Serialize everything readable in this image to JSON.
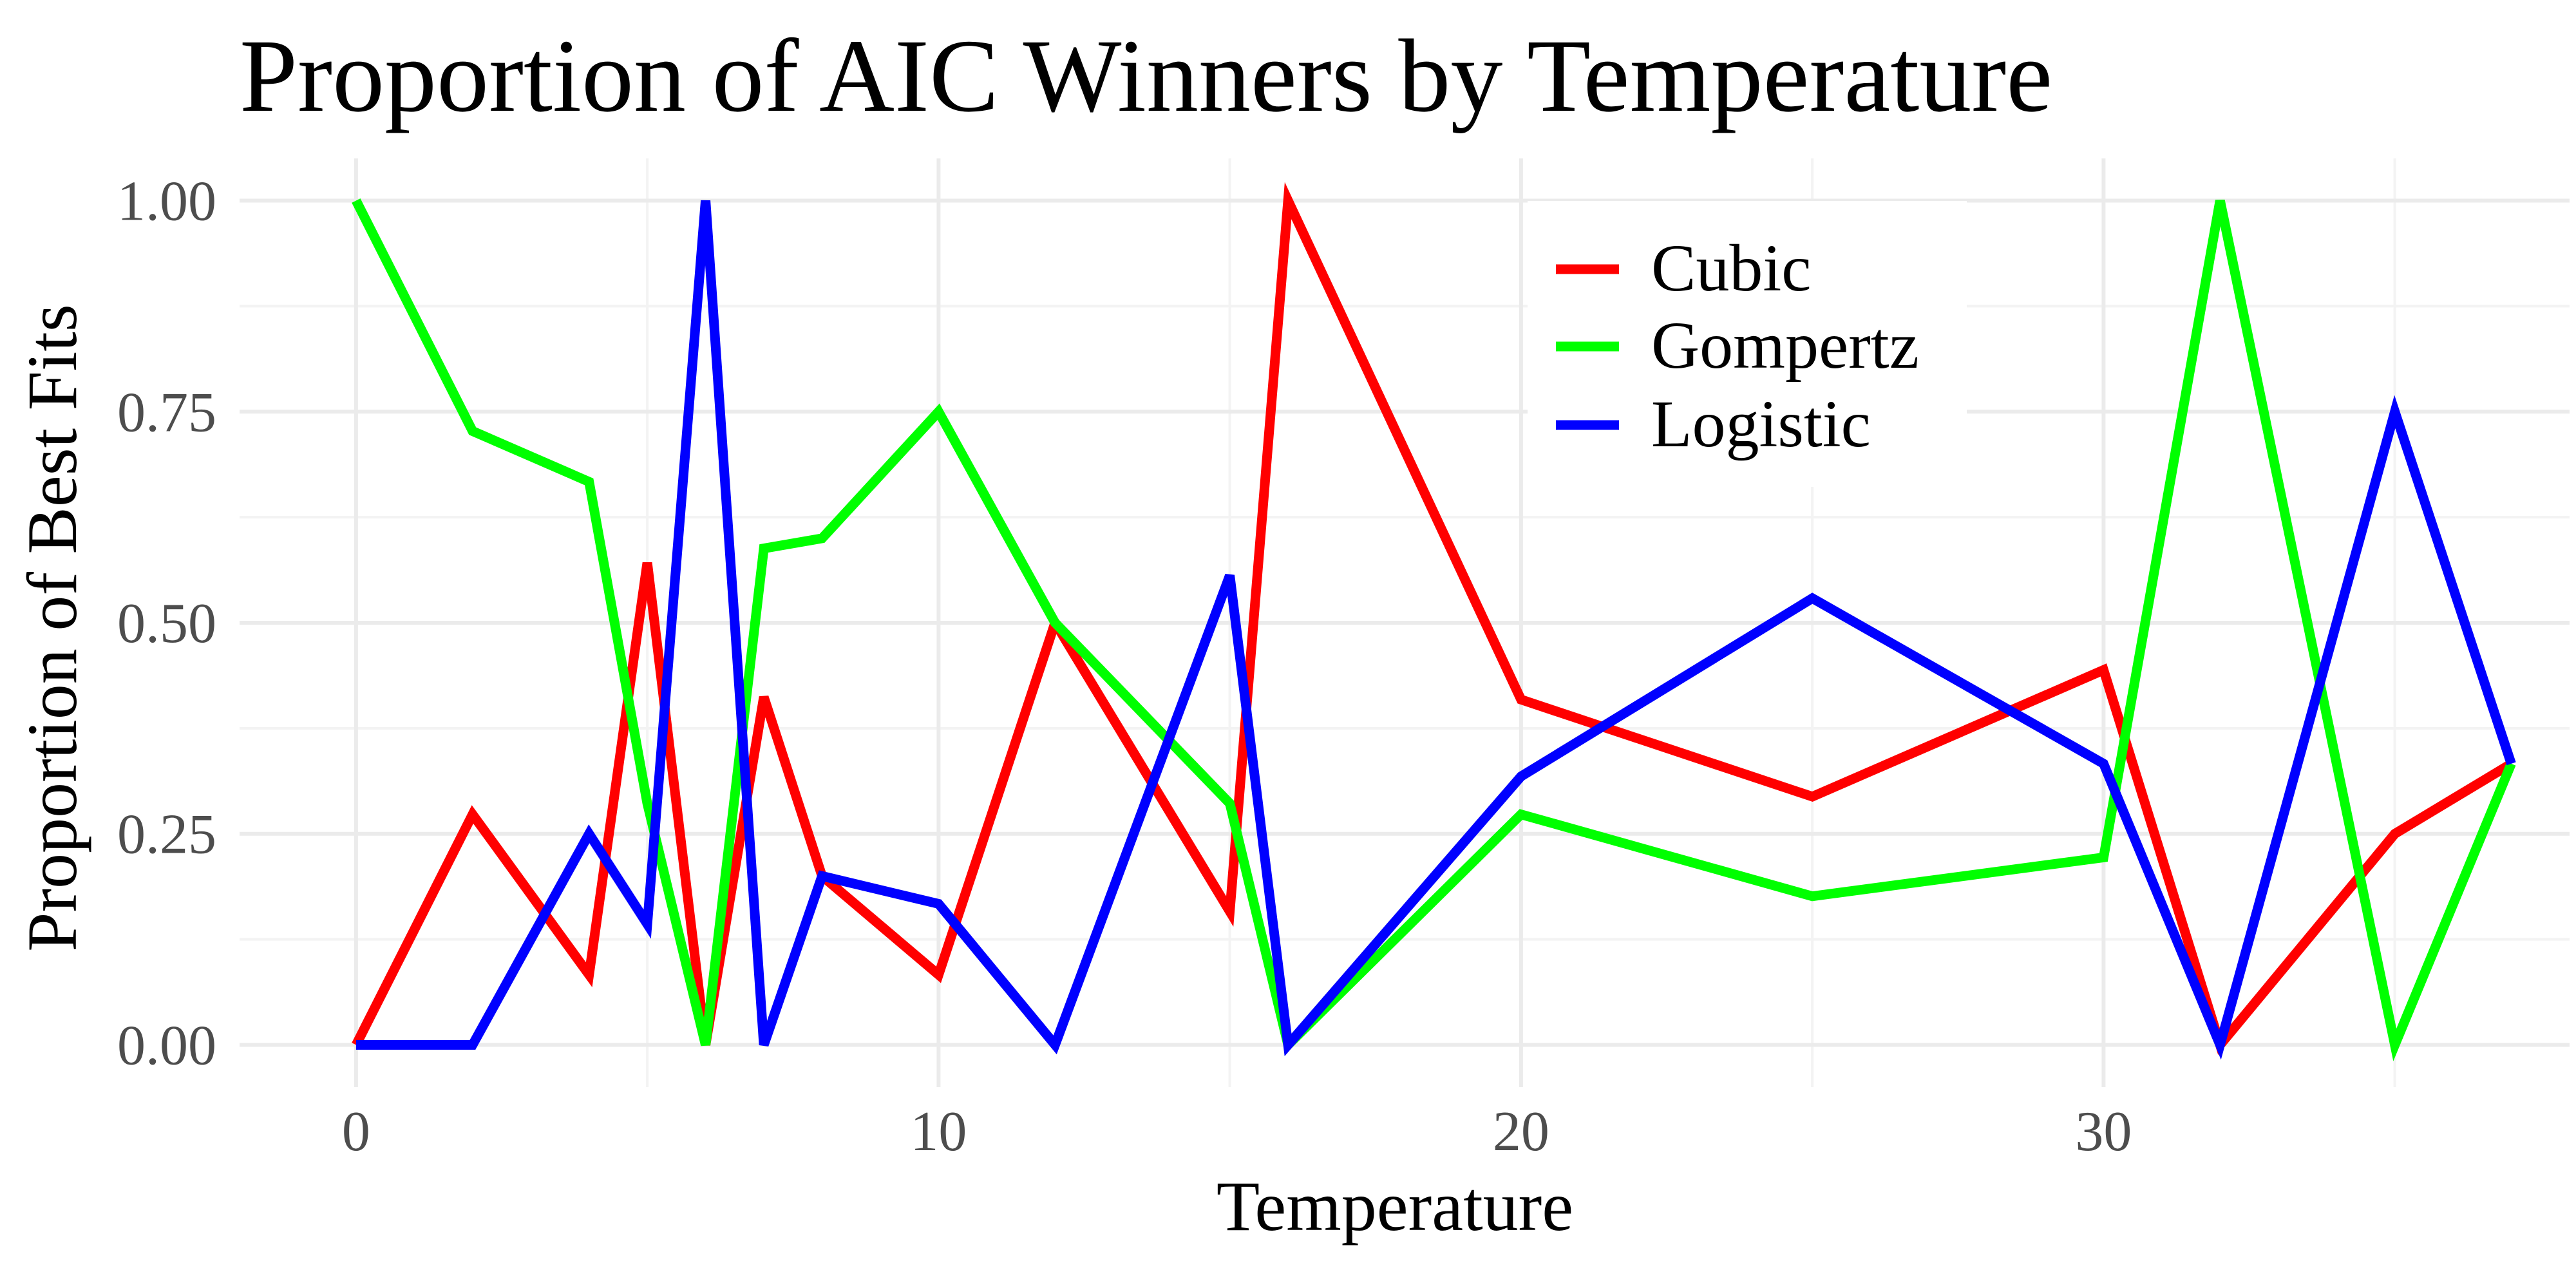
{
  "chart_data": {
    "type": "line",
    "title": "Proportion of AIC Winners by Temperature",
    "xlabel": "Temperature",
    "ylabel": "Proportion of Best Fits",
    "xlim": [
      -2,
      38
    ],
    "ylim": [
      -0.05,
      1.05
    ],
    "x_ticks": [
      0,
      10,
      20,
      30
    ],
    "x_tick_labels": [
      "0",
      "10",
      "20",
      "30"
    ],
    "x_minor_ticks": [
      5,
      15,
      25,
      35
    ],
    "y_ticks": [
      0,
      0.25,
      0.5,
      0.75,
      1
    ],
    "y_tick_labels": [
      "0.00",
      "0.25",
      "0.50",
      "0.75",
      "1.00"
    ],
    "y_minor_ticks": [
      0.125,
      0.375,
      0.625,
      0.875
    ],
    "grid": true,
    "legend_position": "top-right",
    "x": [
      0,
      2,
      4,
      5,
      6,
      7,
      8,
      10,
      12,
      15,
      16,
      20,
      25,
      30,
      32,
      35,
      37
    ],
    "series": [
      {
        "name": "Cubic",
        "color": "#ff0000",
        "values": [
          0,
          0.273,
          0.083,
          0.571,
          0,
          0.412,
          0.2,
          0.083,
          0.5,
          0.158,
          1,
          0.409,
          0.294,
          0.444,
          0,
          0.25,
          0.333
        ]
      },
      {
        "name": "Gompertz",
        "color": "#00ff00",
        "values": [
          1,
          0.727,
          0.667,
          0.286,
          0,
          0.588,
          0.6,
          0.75,
          0.5,
          0.286,
          0,
          0.273,
          0.176,
          0.222,
          1,
          0,
          0.333
        ]
      },
      {
        "name": "Logistic",
        "color": "#0000ff",
        "values": [
          0,
          0,
          0.25,
          0.143,
          1,
          0,
          0.2,
          0.167,
          0,
          0.556,
          0,
          0.318,
          0.529,
          0.333,
          0,
          0.75,
          0.333
        ]
      }
    ]
  }
}
